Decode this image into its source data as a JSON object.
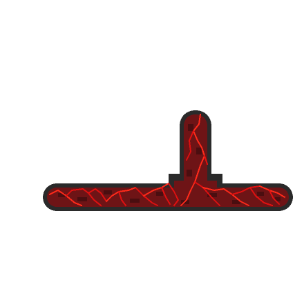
{
  "sprite": {
    "name": "lava-vein-pipe-t-junction",
    "colors": {
      "outline": "#2a2a2a",
      "fill": "#6e1416",
      "fill_dark": "#4a0e10",
      "vein": "#e01010",
      "vein_bright": "#ff2a1a",
      "background": "#ffffff"
    }
  }
}
